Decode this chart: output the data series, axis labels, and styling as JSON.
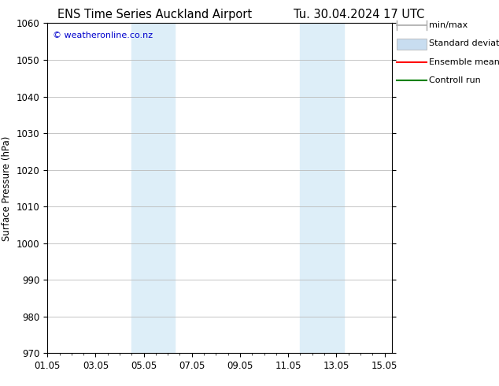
{
  "title_left": "ENS Time Series Auckland Airport",
  "title_right": "Tu. 30.04.2024 17 UTC",
  "ylabel": "Surface Pressure (hPa)",
  "ylim": [
    970,
    1060
  ],
  "yticks": [
    970,
    980,
    990,
    1000,
    1010,
    1020,
    1030,
    1040,
    1050,
    1060
  ],
  "xtick_labels": [
    "01.05",
    "03.05",
    "05.05",
    "07.05",
    "09.05",
    "11.05",
    "13.05",
    "15.05"
  ],
  "xtick_positions": [
    0,
    2,
    4,
    6,
    8,
    10,
    12,
    14
  ],
  "xlim": [
    0,
    14.3
  ],
  "shaded_bands": [
    {
      "x_start": 3.5,
      "x_end": 5.3,
      "color": "#ddeef8"
    },
    {
      "x_start": 10.5,
      "x_end": 12.3,
      "color": "#ddeef8"
    }
  ],
  "copyright_text": "© weatheronline.co.nz",
  "copyright_color": "#0000cc",
  "background_color": "#ffffff",
  "plot_bg_color": "#ffffff",
  "grid_color": "#bbbbbb",
  "title_fontsize": 10.5,
  "tick_fontsize": 8.5,
  "label_fontsize": 8.5,
  "copyright_fontsize": 8,
  "legend_fontsize": 8
}
